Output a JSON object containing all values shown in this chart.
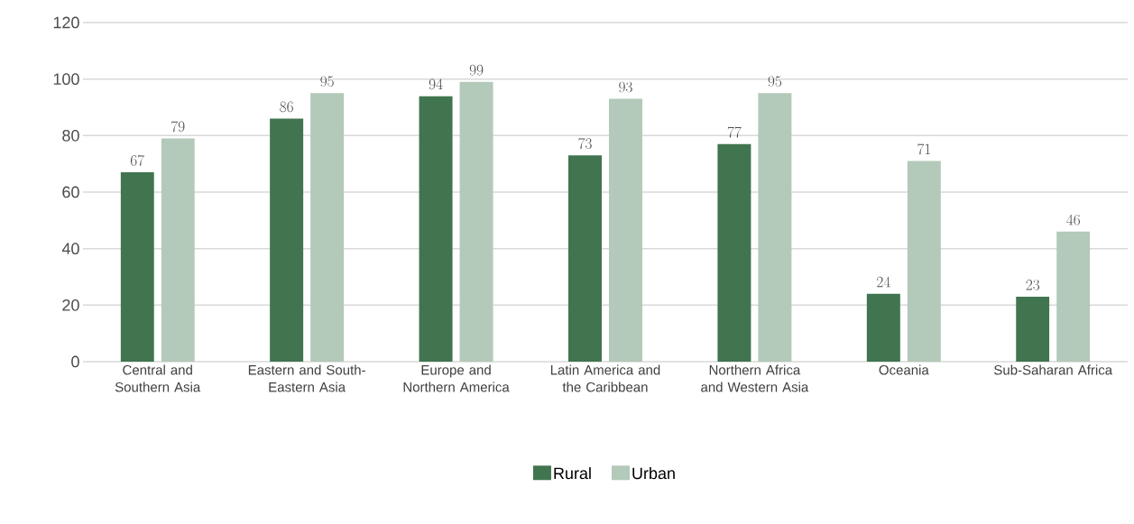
{
  "chart_data": {
    "type": "bar",
    "categories": [
      "Central and Southern Asia",
      "Eastern and South-Eastern Asia",
      "Europe and Northern America",
      "Latin America and the Caribbean",
      "Northern Africa and Western Asia",
      "Oceania",
      "Sub-Saharan Africa"
    ],
    "series": [
      {
        "name": "Rural",
        "color": "#41754f",
        "values": [
          67,
          86,
          94,
          73,
          77,
          24,
          23
        ]
      },
      {
        "name": "Urban",
        "color": "#b3c9b9",
        "values": [
          79,
          95,
          99,
          93,
          95,
          71,
          46
        ]
      }
    ],
    "ylim": [
      0,
      120
    ],
    "yticks": [
      0,
      20,
      40,
      60,
      80,
      100,
      120
    ],
    "grid": "y",
    "legend": "bottom",
    "data_labels": true
  }
}
